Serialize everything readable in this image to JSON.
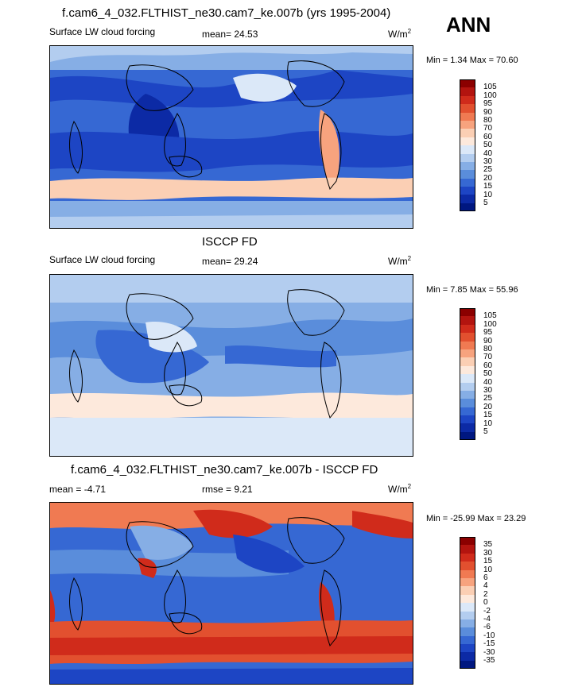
{
  "panels": [
    {
      "title": "f.cam6_4_032.FLTHIST_ne30.cam7_ke.007b (yrs 1995-2004)",
      "left_label": "Surface LW cloud forcing",
      "center_label": "mean=  24.53",
      "units": "W/m",
      "units_sup": "2",
      "minmax": "Min =   1.34 Max =  70.60",
      "levels": [
        "105",
        "100",
        "95",
        "90",
        "80",
        "70",
        "60",
        "50",
        "40",
        "30",
        "25",
        "20",
        "15",
        "10",
        "5"
      ]
    },
    {
      "title": "ISCCP FD",
      "left_label": "Surface LW cloud forcing",
      "center_label": "mean=  29.24",
      "units": "W/m",
      "units_sup": "2",
      "minmax": "Min =   7.85 Max =  55.96",
      "levels": [
        "105",
        "100",
        "95",
        "90",
        "80",
        "70",
        "60",
        "50",
        "40",
        "30",
        "25",
        "20",
        "15",
        "10",
        "5"
      ]
    },
    {
      "title": "f.cam6_4_032.FLTHIST_ne30.cam7_ke.007b - ISCCP FD",
      "left_label": "mean =  -4.71",
      "center_label": "rmse =    9.21",
      "units": "W/m",
      "units_sup": "2",
      "minmax": "Min = -25.99 Max =  23.29",
      "levels": [
        "35",
        "30",
        "15",
        "10",
        "6",
        "4",
        "2",
        "0",
        "-2",
        "-4",
        "-6",
        "-10",
        "-15",
        "-30",
        "-35"
      ]
    }
  ],
  "season": "ANN",
  "colors": {
    "colorbar": [
      "#8b0000",
      "#b3140f",
      "#d02b1b",
      "#e2502f",
      "#f07a52",
      "#f7a37e",
      "#fbcfb4",
      "#fde9dc",
      "#dbe8f8",
      "#b3cdef",
      "#86aee5",
      "#5a8ddb",
      "#3668d3",
      "#1d45c4",
      "#0c2aa5",
      "#001780"
    ]
  }
}
